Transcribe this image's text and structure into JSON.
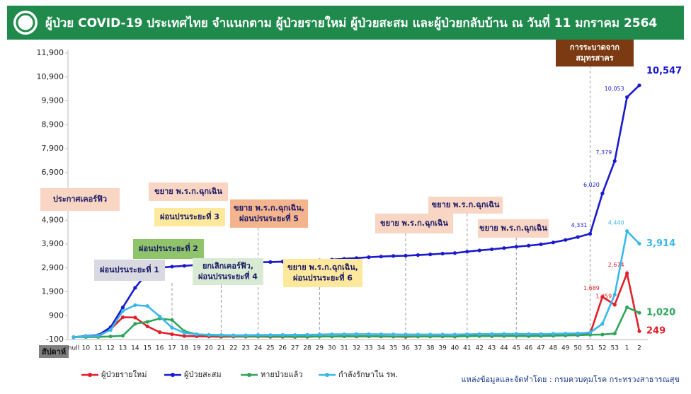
{
  "chart_data": {
    "type": "line",
    "title": "ผู้ป่วย COVID-19 ประเทศไทย จำแนกตาม ผู้ป่วยรายใหม่ ผู้ป่วยสะสม และผู้ป่วยกลับบ้าน  ณ วันที่ 11 มกราคม 2564",
    "x_label": "สัปดาห์",
    "source": "แหล่งข้อมูลและจัดทำโดย : กรมควบคุมโรค กระทรวงสาธารณสุข",
    "categories": [
      "null",
      "10",
      "11",
      "12",
      "13",
      "14",
      "15",
      "16",
      "17",
      "18",
      "19",
      "20",
      "21",
      "22",
      "23",
      "24",
      "25",
      "26",
      "27",
      "28",
      "29",
      "30",
      "31",
      "32",
      "33",
      "34",
      "35",
      "36",
      "37",
      "38",
      "39",
      "40",
      "41",
      "42",
      "43",
      "44",
      "45",
      "46",
      "47",
      "48",
      "49",
      "50",
      "51",
      "52",
      "53",
      "1",
      "2"
    ],
    "ylim": [
      -100,
      11900
    ],
    "yticks": [
      {
        "value": -100,
        "label": "-100"
      },
      900,
      {
        "value": 1900,
        "label": "1,900"
      },
      {
        "value": 2900,
        "label": "2,900"
      },
      {
        "value": 3900,
        "label": "3,900"
      },
      {
        "value": 4900,
        "label": "4,900"
      },
      {
        "value": 5900,
        "label": "5,900"
      },
      {
        "value": 6900,
        "label": "6,900"
      },
      {
        "value": 7900,
        "label": "7,900"
      },
      {
        "value": 8900,
        "label": "8,900"
      },
      {
        "value": 9900,
        "label": "9,900"
      },
      {
        "value": 10900,
        "label": "10,900"
      },
      {
        "value": 11900,
        "label": "11,900"
      }
    ],
    "series": [
      {
        "name": "ผู้ป่วยรายใหม่",
        "color": "#e0202a",
        "values": [
          0,
          30,
          32,
          329,
          834,
          822,
          451,
          207,
          122,
          47,
          38,
          27,
          17,
          23,
          22,
          27,
          12,
          15,
          11,
          12,
          31,
          30,
          36,
          30,
          36,
          28,
          23,
          12,
          27,
          28,
          34,
          22,
          61,
          51,
          45,
          52,
          56,
          46,
          55,
          78,
          106,
          120,
          139,
          1689,
          1359,
          2674,
          249
        ],
        "value_labels": [
          null,
          null,
          null,
          null,
          null,
          null,
          null,
          null,
          null,
          null,
          null,
          null,
          null,
          null,
          null,
          null,
          null,
          null,
          null,
          null,
          null,
          null,
          null,
          null,
          null,
          null,
          null,
          null,
          null,
          null,
          null,
          null,
          null,
          null,
          null,
          null,
          null,
          null,
          null,
          null,
          null,
          null,
          null,
          "1,689",
          "1,359",
          "2,674",
          "249"
        ]
      },
      {
        "name": "ผู้ป่วยสะสม",
        "color": "#1a1acc",
        "values": [
          0,
          50,
          82,
          411,
          1245,
          2067,
          2700,
          2907,
          2954,
          2987,
          3025,
          3042,
          3065,
          3082,
          3104,
          3135,
          3147,
          3162,
          3173,
          3185,
          3216,
          3246,
          3282,
          3312,
          3348,
          3376,
          3399,
          3411,
          3438,
          3466,
          3500,
          3522,
          3583,
          3634,
          3679,
          3731,
          3787,
          3833,
          3888,
          3966,
          4072,
          4192,
          4331,
          6020,
          7379,
          10053,
          10547
        ],
        "value_labels": [
          null,
          null,
          null,
          null,
          null,
          null,
          null,
          null,
          null,
          null,
          null,
          null,
          null,
          null,
          null,
          null,
          null,
          null,
          null,
          null,
          null,
          null,
          null,
          null,
          null,
          null,
          null,
          null,
          null,
          null,
          null,
          null,
          null,
          null,
          null,
          null,
          null,
          null,
          null,
          null,
          null,
          null,
          "4,331",
          "6,020",
          "7,379",
          "10,053",
          "10,547"
        ]
      },
      {
        "name": "หายป่วยแล้ว",
        "color": "#2ea55a",
        "values": [
          0,
          5,
          10,
          30,
          60,
          560,
          640,
          780,
          720,
          250,
          120,
          80,
          60,
          50,
          40,
          40,
          30,
          30,
          25,
          25,
          30,
          30,
          35,
          35,
          35,
          35,
          30,
          30,
          30,
          30,
          30,
          30,
          40,
          45,
          45,
          50,
          50,
          45,
          50,
          60,
          70,
          80,
          100,
          110,
          150,
          1250,
          1020
        ],
        "value_labels": [
          null,
          null,
          null,
          null,
          null,
          null,
          null,
          null,
          null,
          null,
          null,
          null,
          null,
          null,
          null,
          null,
          null,
          null,
          null,
          null,
          null,
          null,
          null,
          null,
          null,
          null,
          null,
          null,
          null,
          null,
          null,
          null,
          null,
          null,
          null,
          null,
          null,
          null,
          null,
          null,
          null,
          null,
          null,
          null,
          null,
          null,
          "1,020"
        ]
      },
      {
        "name": "กำลังรักษาใน รพ.",
        "color": "#3ab8ea",
        "values": [
          0,
          40,
          60,
          300,
          1100,
          1340,
          1305,
          866,
          400,
          180,
          120,
          100,
          90,
          80,
          80,
          90,
          90,
          95,
          95,
          100,
          110,
          120,
          120,
          125,
          125,
          120,
          115,
          110,
          110,
          110,
          110,
          110,
          120,
          130,
          130,
          135,
          135,
          130,
          130,
          140,
          150,
          160,
          190,
          560,
          1780,
          4440,
          3914
        ],
        "value_labels": [
          null,
          null,
          null,
          null,
          null,
          null,
          null,
          null,
          null,
          null,
          null,
          null,
          null,
          null,
          null,
          null,
          null,
          null,
          null,
          null,
          null,
          null,
          null,
          null,
          null,
          null,
          null,
          null,
          null,
          null,
          null,
          null,
          null,
          null,
          null,
          null,
          null,
          null,
          null,
          null,
          null,
          null,
          null,
          null,
          null,
          "4,440",
          "3,914"
        ]
      }
    ],
    "annotations": [
      [
        "การระบาดจาก",
        "สมุทรสาคร"
      ],
      [
        "ประกาศเคอร์ฟิว"
      ],
      [
        "ขยาย พ.ร.ก.ฉุกเฉิน"
      ],
      [
        "ผ่อนปรนระยะที่ 3"
      ],
      [
        "ผ่อนปรนระยะที่ 2"
      ],
      [
        "ผ่อนปรนระยะที่ 1"
      ],
      [
        "ยกเลิกเคอร์ฟิว,",
        "ผ่อนปรนระยะที่ 4"
      ],
      [
        "ขยาย พ.ร.ก.ฉุกเฉิน,",
        "ผ่อนปรนระยะที่ 5"
      ],
      [
        "ขยาย พ.ร.ก.ฉุกเฉิน,",
        "ผ่อนปรนระยะที่ 6"
      ],
      [
        "ขยาย พ.ร.ก.ฉุกเฉิน"
      ],
      [
        "ขยาย พ.ร.ก.ฉุกเฉิน"
      ],
      [
        "ขยาย พ.ร.ก.ฉุกเฉิน"
      ]
    ],
    "grid": false
  }
}
